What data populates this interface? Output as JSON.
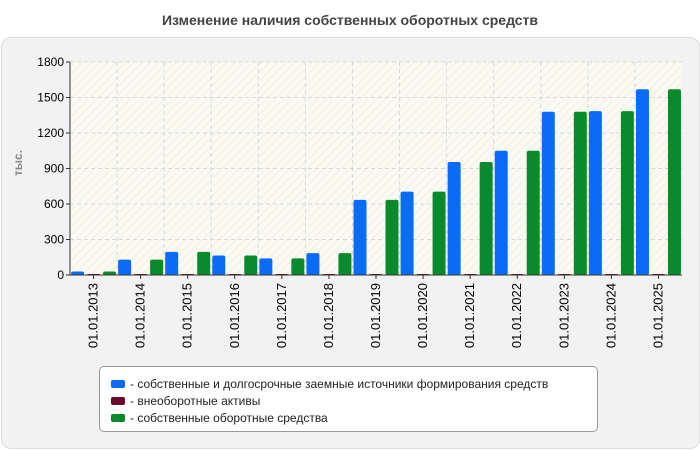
{
  "chart_data": {
    "type": "bar",
    "title": "Изменение наличия собственных оборотных средств",
    "ylabel": "тыс.",
    "xlabel": "",
    "ylim": [
      0,
      1800
    ],
    "yticks": [
      0,
      300,
      600,
      900,
      1200,
      1500,
      1800
    ],
    "grid": true,
    "legend_position": "bottom",
    "categories": [
      "01.01.2013",
      "01.01.2014",
      "01.01.2015",
      "01.01.2016",
      "01.01.2017",
      "01.01.2018",
      "01.01.2019",
      "01.01.2020",
      "01.01.2021",
      "01.01.2022",
      "01.01.2023",
      "01.01.2024",
      "01.01.2025"
    ],
    "series": [
      {
        "name": "собственные и долгосрочные заемные источники формирования средств",
        "color": "#0a6cf5",
        "values": [
          30,
          130,
          195,
          165,
          140,
          185,
          635,
          705,
          955,
          1050,
          1380,
          1385,
          1570
        ]
      },
      {
        "name": "внеоборотные активы",
        "color": "#6b0a2e",
        "values": [
          3,
          3,
          3,
          3,
          3,
          3,
          3,
          3,
          3,
          3,
          3,
          3,
          3
        ]
      },
      {
        "name": "собственные оборотные средства",
        "color": "#0a8a2c",
        "values": [
          30,
          130,
          195,
          165,
          140,
          185,
          635,
          705,
          955,
          1050,
          1380,
          1385,
          1570
        ]
      }
    ]
  }
}
